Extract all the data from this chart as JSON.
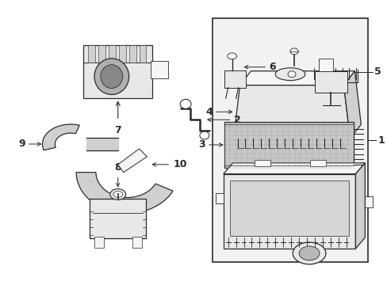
{
  "bg_color": "#ffffff",
  "line_color": "#2a2a2a",
  "fill_light": "#f5f5f5",
  "fill_mid": "#e8e8e8",
  "fill_dark": "#d0d0d0",
  "box_fill": "#efefef",
  "fig_width": 4.89,
  "fig_height": 3.6,
  "dpi": 100
}
